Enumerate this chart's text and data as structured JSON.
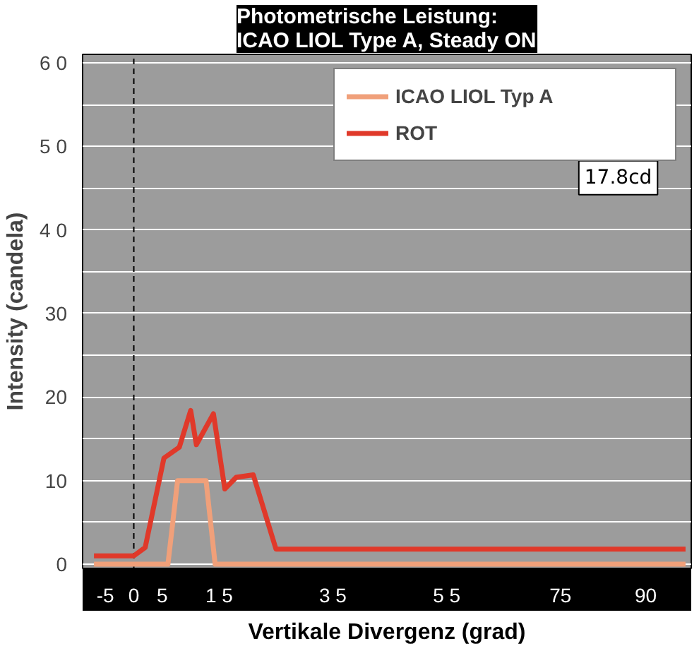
{
  "chart_data": {
    "type": "line",
    "title": "Photometrische Leistung:\nICAO LIOL Type A, Steady ON",
    "xlabel": "Vertikale Divergenz (grad)",
    "ylabel": "Intensity (candela)",
    "series": [
      {
        "name": "ICAO LIOL Typ A",
        "color": "#f0a07a",
        "x": [
          -7,
          6,
          7.7,
          12.7,
          14.3,
          97
        ],
        "values": [
          0,
          0,
          10,
          10,
          0,
          0
        ]
      },
      {
        "name": "ROT",
        "color": "#e0392a",
        "x": [
          -7,
          0,
          2,
          5.3,
          8,
          10,
          11,
          14,
          16,
          18,
          21,
          25,
          97
        ],
        "values": [
          1,
          1,
          2,
          12.7,
          14,
          18.4,
          14.3,
          18,
          9,
          10.4,
          10.7,
          1.8,
          1.8
        ]
      }
    ],
    "xlim": [
      -9,
      98
    ],
    "ylim": [
      -0.5,
      61
    ],
    "xticks": [
      -5,
      0,
      5,
      {
        "value": 15,
        "label": "1 5"
      },
      {
        "value": 35,
        "label": "3 5"
      },
      {
        "value": 55,
        "label": "5 5"
      },
      75,
      90
    ],
    "yticks": [
      0,
      {
        "value": 5,
        "label": null
      },
      10,
      {
        "value": 15,
        "label": null
      },
      20,
      {
        "value": 25,
        "label": null
      },
      30,
      {
        "value": 35,
        "label": null
      },
      {
        "value": 40,
        "label": "4 0"
      },
      {
        "value": 45,
        "label": null
      },
      {
        "value": 50,
        "label": "5 0"
      },
      {
        "value": 55,
        "label": null
      },
      {
        "value": 60,
        "label": "6 0"
      }
    ],
    "grid": "y",
    "legend": "top right",
    "marker": "none",
    "line_style": "solid",
    "ref_lines": [
      {
        "axis": "x",
        "value": 0,
        "color": "#000000",
        "line_style": "dashed"
      }
    ],
    "annotations": [
      "17.8cd"
    ]
  }
}
